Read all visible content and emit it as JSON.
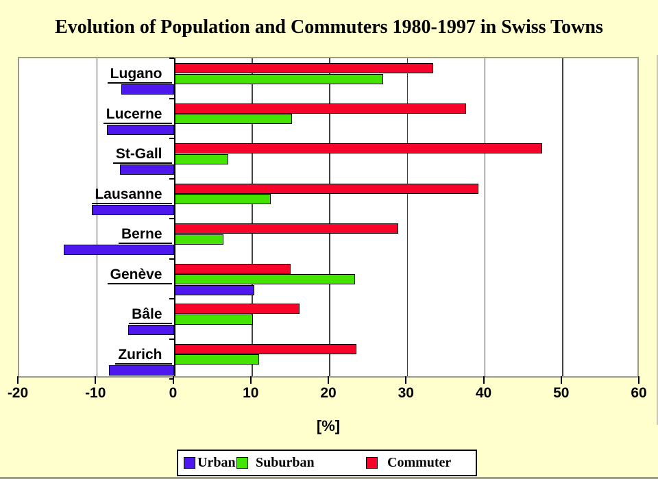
{
  "title": "Evolution of Population and Commuters 1980-1997 in Swiss Towns",
  "chart_data": {
    "type": "bar",
    "orientation": "horizontal",
    "title": "Evolution of Population and Commuters 1980-1997 in Swiss Towns",
    "categories": [
      "Lugano",
      "Lucerne",
      "St-Gall",
      "Lausanne",
      "Berne",
      "Genève",
      "Bâle",
      "Zurich"
    ],
    "series": [
      {
        "name": "Commuter",
        "color": "#F7042A",
        "values": [
          33.3,
          37.6,
          47.4,
          39.2,
          28.8,
          15.0,
          16.1,
          23.4
        ]
      },
      {
        "name": "Suburban",
        "color": "#45E400",
        "values": [
          26.9,
          15.1,
          6.9,
          12.4,
          6.3,
          23.3,
          10.1,
          10.9
        ]
      },
      {
        "name": "Urban",
        "color": "#4D17EE",
        "values": [
          -6.8,
          -8.7,
          -7.0,
          -10.6,
          -14.3,
          10.3,
          -6.0,
          -8.4
        ]
      }
    ],
    "xlabel": "[%]",
    "xlim": [
      -20,
      60
    ],
    "x_ticks": [
      -20,
      -10,
      0,
      10,
      20,
      30,
      40,
      50,
      60
    ],
    "grid": true,
    "legend_position": "bottom"
  },
  "legend": {
    "items": [
      {
        "label": "Urban",
        "color": "#4D17EE"
      },
      {
        "label": "Suburban",
        "color": "#45E400"
      },
      {
        "label": "Commuter",
        "color": "#F7042A"
      }
    ]
  },
  "colors": {
    "background": "#FFFFCD",
    "plot_background": "#FFFFFF",
    "plot_border": "#9B9B88",
    "gridline": "#404040",
    "axis": "#000000",
    "text": "#000000"
  }
}
